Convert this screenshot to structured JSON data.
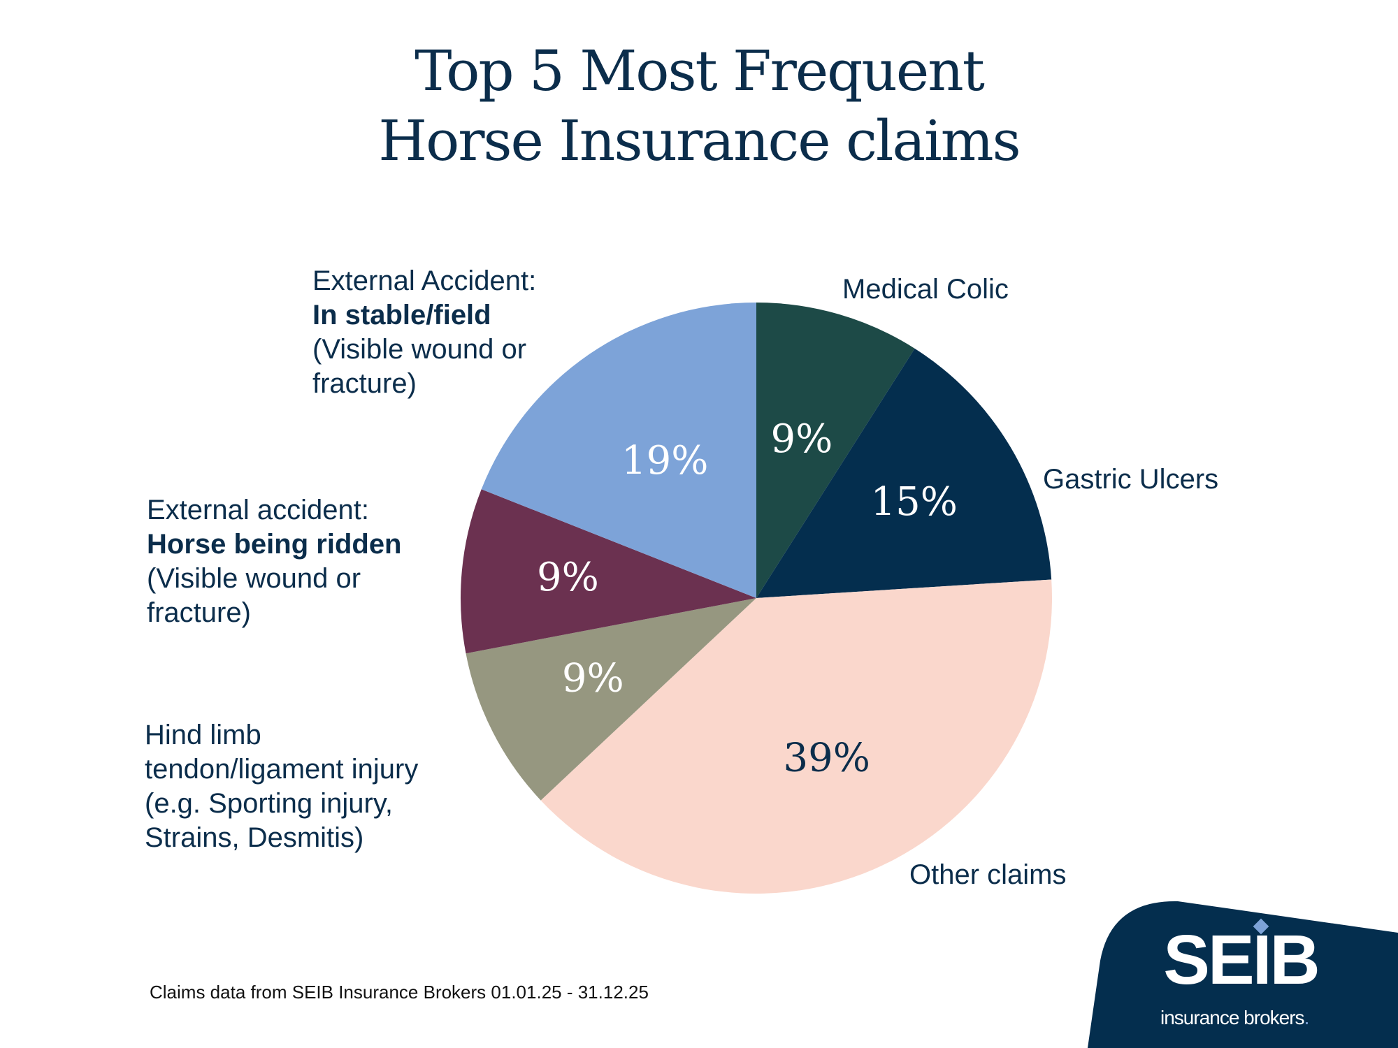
{
  "title": [
    "Top 5 Most Frequent",
    "Horse Insurance claims"
  ],
  "footnote": "Claims data from SEIB Insurance Brokers 01.01.25 - 31.12.25",
  "logo": {
    "text": "SEIB",
    "tagline": "insurance brokers.",
    "background": "#042e4e",
    "accent": "#7da3d8"
  },
  "chart_data": {
    "type": "pie",
    "title": "Top 5 Most Frequent Horse Insurance claims",
    "start": "top",
    "direction": "clockwise",
    "slices": [
      {
        "label": "Medical Colic",
        "value": 9,
        "display": "9%",
        "color": "#1d4a47",
        "text_color": "#ffffff"
      },
      {
        "label": "Gastric Ulcers",
        "value": 15,
        "display": "15%",
        "color": "#042e4e",
        "text_color": "#ffffff"
      },
      {
        "label": "Other claims",
        "value": 39,
        "display": "39%",
        "color": "#fad7cc",
        "text_color": "#0b2d4b"
      },
      {
        "label": "Hind limb tendon/ligament injury (e.g. Sporting injury, Strains, Desmitis)",
        "value": 9,
        "display": "9%",
        "color": "#969780",
        "text_color": "#ffffff"
      },
      {
        "label": "External accident: Horse being ridden (Visible wound or fracture)",
        "value": 9,
        "display": "9%",
        "color": "#6b3150",
        "text_color": "#ffffff"
      },
      {
        "label": "External Accident: In stable/field (Visible wound or fracture)",
        "value": 19,
        "display": "19%",
        "color": "#7da3d8",
        "text_color": "#ffffff"
      }
    ]
  },
  "labels": {
    "colic": [
      "Medical Colic"
    ],
    "gastric": [
      "Gastric Ulcers"
    ],
    "other": [
      "Other claims"
    ],
    "hind": [
      "Hind limb",
      "tendon/ligament injury",
      "(e.g. Sporting injury,",
      "Strains, Desmitis)"
    ],
    "ridden": [
      "External accident:",
      "Horse being ridden",
      "(Visible wound or",
      "fracture)"
    ],
    "stable": [
      "External Accident:",
      "In stable/field",
      "(Visible wound or",
      "fracture)"
    ]
  }
}
